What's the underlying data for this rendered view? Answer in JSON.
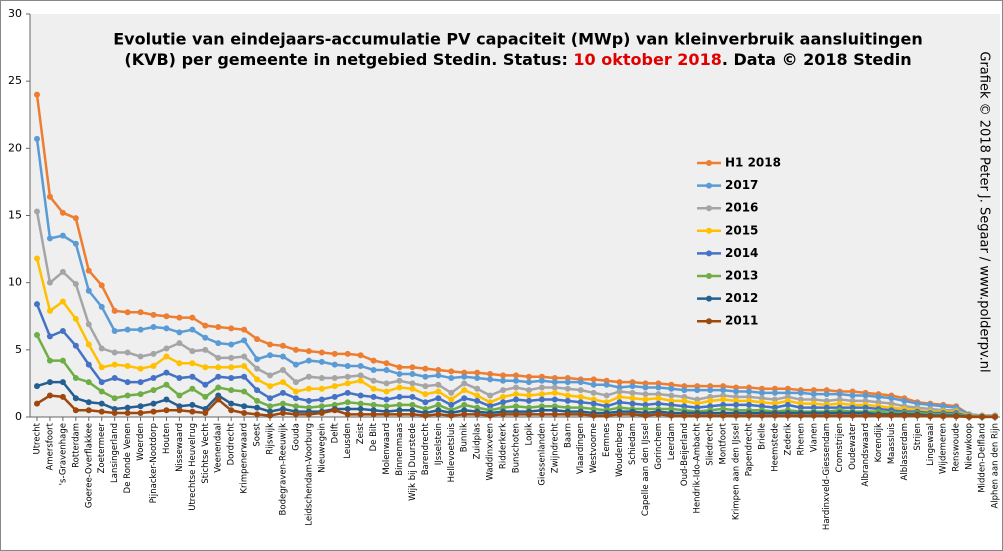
{
  "chart_data": {
    "type": "line",
    "title": "Evolutie  van  eindejaars-accumulatie  PV  capaciteit  (MWp)  van  kleinverbruik  aansluitingen",
    "subtitle_parts": [
      "(KVB) per gemeente in netgebied Stedin. Status: ",
      "10 oktober 2018",
      ". Data © 2018 Stedin"
    ],
    "highlight_color": "#e00000",
    "credit": "Grafiek © 2018 Peter J. Segaar / www.polderpv.nl",
    "ylim": [
      0,
      30
    ],
    "yticks": [
      0,
      5,
      10,
      15,
      20,
      25,
      30
    ],
    "grid": false,
    "legend": "right",
    "categories": [
      "Utrecht",
      "Amersfoort",
      "'s-Gravenhage",
      "Rotterdam",
      "Goeree-Overflakkee",
      "Zoetermeer",
      "Lansingerland",
      "De Ronde Venen",
      "Woerden",
      "Pijnacker-Nootdorp",
      "Houten",
      "Nissewaard",
      "Utrechtse Heuvelrug",
      "Stichtse Vecht",
      "Veenendaal",
      "Dordrecht",
      "Krimpenerwaard",
      "Soest",
      "Rijswijk",
      "Bodegraven-Reeuwijk",
      "Gouda",
      "Leidschendam-Voorburg",
      "Nieuwegein",
      "Delft",
      "Leusden",
      "Zeist",
      "De Bilt",
      "Molenwaard",
      "Binnenmaas",
      "Wijk bij Duurstede",
      "Barendrecht",
      "IJsselstein",
      "Hellevoetsluis",
      "Bunnik",
      "Zuidplas",
      "Waddinxveen",
      "Ridderkerk",
      "Bunschoten",
      "Lopik",
      "Giessenlanden",
      "Zwijndrecht",
      "Baarn",
      "Vlaardingen",
      "Westvoorne",
      "Eemnes",
      "Woudenberg",
      "Schiedam",
      "Capelle aan den IJssel",
      "Gorinchem",
      "Leerdam",
      "Oud-Beijerland",
      "Hendrik-Ido-Ambacht",
      "Sliedrecht",
      "Montfoort",
      "Krimpen aan den IJssel",
      "Papendrecht",
      "Brielle",
      "Heemstede",
      "Zederik",
      "Rhenen",
      "Vianen",
      "Hardinxveld-Giessendam",
      "Cromstrijen",
      "Oudewater",
      "Albrandswaard",
      "Korendijk",
      "Maassluis",
      "Alblasserdam",
      "Strijen",
      "Lingewaal",
      "Wijdemeren",
      "Renswoude",
      "Nieuwkoop",
      "Midden-Delfland",
      "Alphen aan den Rijn"
    ],
    "series": [
      {
        "name": "H1 2018",
        "color": "#ed7d31",
        "values": [
          24.0,
          16.4,
          15.2,
          14.8,
          10.9,
          9.8,
          7.9,
          7.8,
          7.8,
          7.6,
          7.5,
          7.4,
          7.4,
          6.8,
          6.7,
          6.6,
          6.5,
          5.8,
          5.4,
          5.3,
          5.0,
          4.9,
          4.8,
          4.7,
          4.7,
          4.6,
          4.2,
          4.0,
          3.7,
          3.7,
          3.6,
          3.5,
          3.4,
          3.3,
          3.3,
          3.2,
          3.1,
          3.1,
          3.0,
          3.0,
          2.9,
          2.9,
          2.8,
          2.8,
          2.7,
          2.6,
          2.6,
          2.5,
          2.5,
          2.4,
          2.3,
          2.3,
          2.3,
          2.3,
          2.2,
          2.2,
          2.1,
          2.1,
          2.1,
          2.0,
          2.0,
          2.0,
          1.9,
          1.9,
          1.8,
          1.7,
          1.6,
          1.4,
          1.1,
          1.0,
          0.9,
          0.8,
          0.2,
          0.1,
          0.1
        ]
      },
      {
        "name": "2017",
        "color": "#5b9bd5",
        "values": [
          20.7,
          13.3,
          13.5,
          12.9,
          9.4,
          8.2,
          6.4,
          6.5,
          6.5,
          6.7,
          6.6,
          6.3,
          6.5,
          5.9,
          5.5,
          5.4,
          5.7,
          4.3,
          4.6,
          4.5,
          3.9,
          4.2,
          4.1,
          3.9,
          3.8,
          3.8,
          3.5,
          3.5,
          3.2,
          3.2,
          3.0,
          3.1,
          2.9,
          3.0,
          2.9,
          2.8,
          2.7,
          2.7,
          2.6,
          2.7,
          2.6,
          2.6,
          2.6,
          2.4,
          2.4,
          2.2,
          2.3,
          2.2,
          2.2,
          2.1,
          2.0,
          2.0,
          2.0,
          2.0,
          1.9,
          1.9,
          1.8,
          1.8,
          1.8,
          1.8,
          1.7,
          1.7,
          1.7,
          1.6,
          1.6,
          1.5,
          1.4,
          1.2,
          1.0,
          0.9,
          0.8,
          0.7,
          0.2,
          0.1,
          0.1
        ]
      },
      {
        "name": "2016",
        "color": "#a5a5a5",
        "values": [
          15.3,
          10.0,
          10.8,
          9.9,
          6.9,
          5.1,
          4.8,
          4.8,
          4.5,
          4.7,
          5.1,
          5.5,
          4.9,
          5.0,
          4.4,
          4.4,
          4.5,
          3.6,
          3.1,
          3.5,
          2.6,
          3.0,
          2.9,
          2.9,
          3.0,
          3.1,
          2.7,
          2.5,
          2.7,
          2.5,
          2.3,
          2.4,
          1.8,
          2.5,
          2.1,
          1.6,
          2.0,
          2.2,
          2.0,
          2.2,
          2.2,
          2.1,
          2.0,
          1.8,
          1.6,
          1.9,
          1.8,
          1.7,
          1.7,
          1.6,
          1.5,
          1.3,
          1.5,
          1.6,
          1.5,
          1.5,
          1.4,
          1.3,
          1.5,
          1.3,
          1.3,
          1.2,
          1.3,
          1.2,
          1.2,
          1.1,
          1.0,
          0.8,
          0.7,
          0.6,
          0.5,
          0.5,
          0.1,
          0.1,
          0.1
        ]
      },
      {
        "name": "2015",
        "color": "#ffc000",
        "values": [
          11.8,
          7.9,
          8.6,
          7.3,
          5.4,
          3.7,
          3.9,
          3.8,
          3.6,
          3.8,
          4.5,
          4.0,
          4.0,
          3.7,
          3.7,
          3.7,
          3.8,
          2.8,
          2.3,
          2.6,
          1.9,
          2.1,
          2.1,
          2.3,
          2.5,
          2.7,
          2.1,
          1.9,
          2.2,
          2.1,
          1.7,
          1.9,
          1.3,
          2.0,
          1.6,
          1.1,
          1.5,
          1.7,
          1.6,
          1.7,
          1.8,
          1.6,
          1.5,
          1.3,
          1.1,
          1.5,
          1.4,
          1.3,
          1.4,
          1.2,
          1.2,
          1.0,
          1.2,
          1.3,
          1.2,
          1.2,
          1.1,
          1.0,
          1.2,
          1.0,
          1.0,
          0.9,
          1.0,
          0.9,
          0.9,
          0.8,
          0.7,
          0.6,
          0.5,
          0.4,
          0.4,
          0.4,
          0.1,
          0.05,
          0.05
        ]
      },
      {
        "name": "2014",
        "color": "#4472c4",
        "values": [
          8.4,
          6.0,
          6.4,
          5.3,
          3.9,
          2.6,
          2.9,
          2.6,
          2.6,
          2.9,
          3.3,
          2.9,
          3.0,
          2.4,
          3.0,
          2.9,
          3.0,
          2.0,
          1.4,
          1.8,
          1.4,
          1.2,
          1.3,
          1.5,
          1.8,
          1.6,
          1.5,
          1.3,
          1.5,
          1.5,
          1.1,
          1.4,
          0.9,
          1.4,
          1.2,
          0.8,
          1.1,
          1.3,
          1.2,
          1.3,
          1.3,
          1.2,
          1.1,
          1.0,
          0.8,
          1.1,
          1.0,
          0.9,
          1.0,
          0.9,
          0.8,
          0.7,
          0.8,
          0.9,
          0.9,
          0.9,
          0.8,
          0.7,
          0.9,
          0.7,
          0.7,
          0.7,
          0.7,
          0.7,
          0.7,
          0.6,
          0.5,
          0.4,
          0.4,
          0.3,
          0.3,
          0.3,
          0.05,
          0.03,
          0.03
        ]
      },
      {
        "name": "2013",
        "color": "#70ad47",
        "values": [
          6.1,
          4.2,
          4.2,
          2.9,
          2.6,
          1.9,
          1.4,
          1.6,
          1.7,
          2.0,
          2.4,
          1.6,
          2.1,
          1.5,
          2.2,
          2.0,
          1.9,
          1.2,
          0.8,
          1.0,
          0.8,
          0.7,
          0.8,
          0.9,
          1.1,
          1.0,
          0.9,
          0.8,
          0.9,
          0.9,
          0.6,
          0.9,
          0.5,
          0.9,
          0.7,
          0.5,
          0.7,
          0.8,
          0.7,
          0.8,
          0.8,
          0.7,
          0.7,
          0.6,
          0.5,
          0.7,
          0.6,
          0.6,
          0.6,
          0.6,
          0.5,
          0.4,
          0.5,
          0.6,
          0.5,
          0.5,
          0.5,
          0.4,
          0.5,
          0.4,
          0.4,
          0.4,
          0.5,
          0.4,
          0.4,
          0.4,
          0.3,
          0.3,
          0.3,
          0.2,
          0.2,
          0.2,
          0.03,
          0.02,
          0.02
        ]
      },
      {
        "name": "2012",
        "color": "#255e91",
        "values": [
          2.3,
          2.6,
          2.6,
          1.4,
          1.1,
          1.0,
          0.6,
          0.7,
          0.8,
          1.0,
          1.3,
          0.8,
          0.9,
          0.6,
          1.6,
          1.0,
          0.8,
          0.7,
          0.4,
          0.6,
          0.4,
          0.4,
          0.4,
          0.6,
          0.6,
          0.6,
          0.5,
          0.4,
          0.5,
          0.5,
          0.3,
          0.5,
          0.3,
          0.5,
          0.4,
          0.3,
          0.4,
          0.4,
          0.4,
          0.5,
          0.5,
          0.4,
          0.4,
          0.3,
          0.3,
          0.4,
          0.4,
          0.3,
          0.4,
          0.3,
          0.3,
          0.3,
          0.3,
          0.3,
          0.3,
          0.3,
          0.3,
          0.3,
          0.3,
          0.3,
          0.3,
          0.3,
          0.3,
          0.3,
          0.3,
          0.2,
          0.2,
          0.2,
          0.2,
          0.1,
          0.1,
          0.1,
          0.02,
          0.01,
          0.01
        ]
      },
      {
        "name": "2011",
        "color": "#9e480e",
        "values": [
          1.0,
          1.6,
          1.5,
          0.5,
          0.5,
          0.4,
          0.3,
          0.3,
          0.3,
          0.4,
          0.5,
          0.5,
          0.4,
          0.3,
          1.3,
          0.5,
          0.3,
          0.2,
          0.1,
          0.3,
          0.2,
          0.2,
          0.3,
          0.5,
          0.2,
          0.2,
          0.2,
          0.2,
          0.2,
          0.2,
          0.1,
          0.2,
          0.1,
          0.2,
          0.2,
          0.1,
          0.2,
          0.2,
          0.2,
          0.2,
          0.2,
          0.2,
          0.2,
          0.1,
          0.1,
          0.2,
          0.2,
          0.1,
          0.2,
          0.1,
          0.1,
          0.1,
          0.1,
          0.1,
          0.1,
          0.1,
          0.1,
          0.1,
          0.1,
          0.1,
          0.1,
          0.1,
          0.1,
          0.1,
          0.1,
          0.1,
          0.1,
          0.1,
          0.1,
          0.05,
          0.05,
          0.05,
          0.01,
          0.01,
          0.01
        ]
      }
    ]
  }
}
